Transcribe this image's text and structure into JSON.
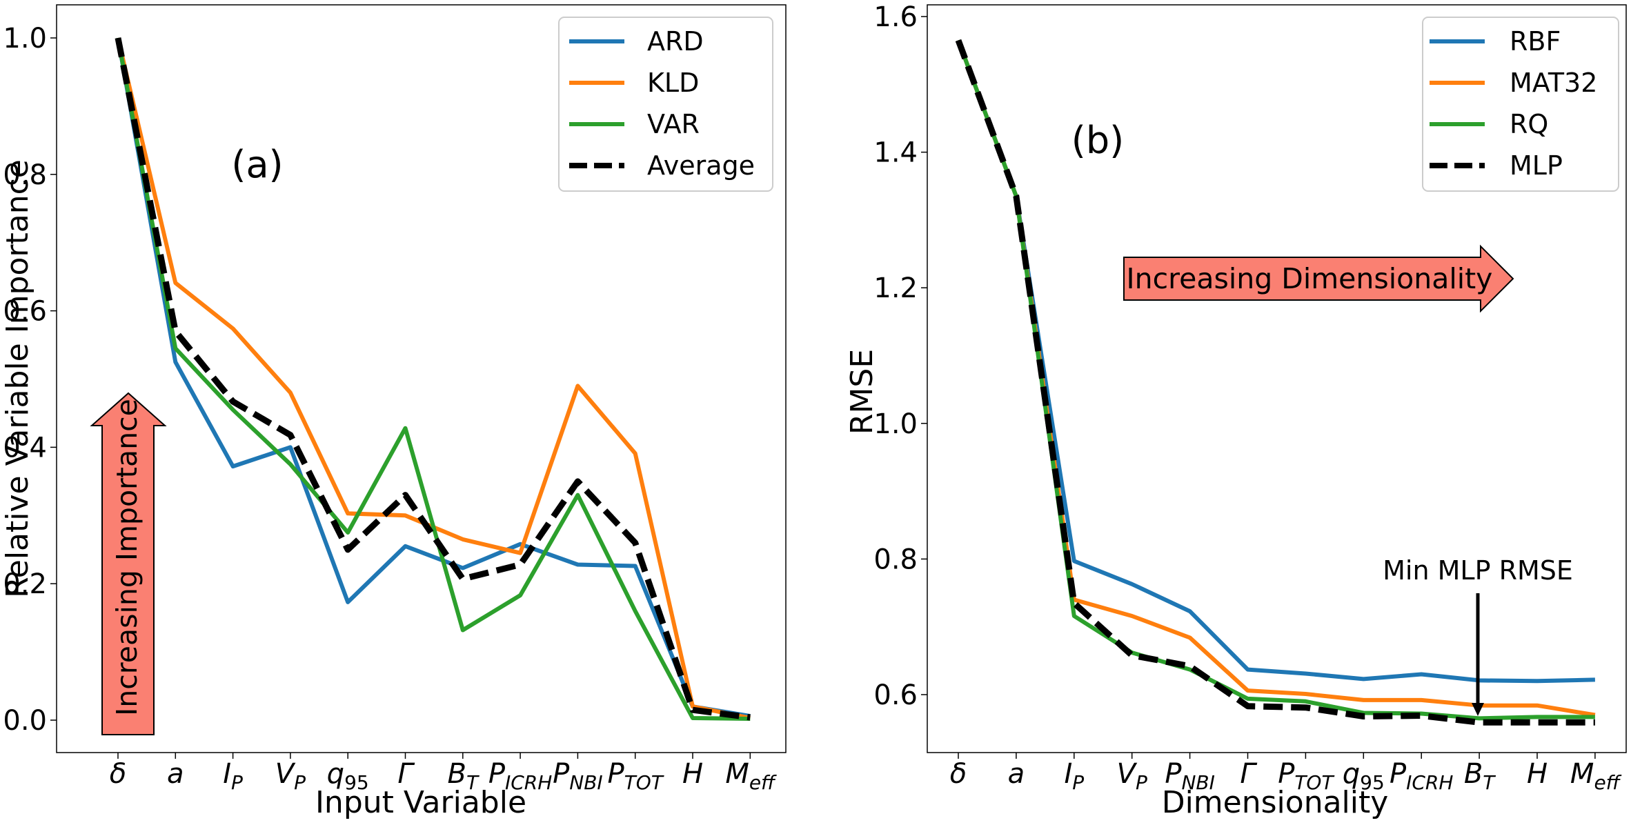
{
  "chart_data": [
    {
      "type": "line",
      "panel_label": "(a)",
      "xlabel": "Input Variable",
      "ylabel": "Relative Variable Importance",
      "ylim": [
        -0.05,
        1.05
      ],
      "yticks": [
        "0.0",
        "0.2",
        "0.4",
        "0.6",
        "0.8",
        "1.0"
      ],
      "yticks_values": [
        0.0,
        0.2,
        0.4,
        0.6,
        0.8,
        1.0
      ],
      "categories": [
        {
          "base": "δ",
          "sub": ""
        },
        {
          "base": "a",
          "sub": ""
        },
        {
          "base": "I",
          "sub": "P"
        },
        {
          "base": "V",
          "sub": "P"
        },
        {
          "base": "q",
          "sub": "95"
        },
        {
          "base": "Γ",
          "sub": ""
        },
        {
          "base": "B",
          "sub": "T"
        },
        {
          "base": "P",
          "sub": "ICRH"
        },
        {
          "base": "P",
          "sub": "NBI"
        },
        {
          "base": "P",
          "sub": "TOT"
        },
        {
          "base": "H",
          "sub": ""
        },
        {
          "base": "M",
          "sub": "eff"
        }
      ],
      "series": [
        {
          "name": "ARD",
          "color": "#1f77b4",
          "dashed": false,
          "values": [
            1.0,
            0.525,
            0.372,
            0.4,
            0.173,
            0.255,
            0.223,
            0.258,
            0.228,
            0.226,
            0.02,
            0.006
          ]
        },
        {
          "name": "KLD",
          "color": "#ff7f0e",
          "dashed": false,
          "values": [
            1.0,
            0.641,
            0.574,
            0.48,
            0.303,
            0.3,
            0.265,
            0.245,
            0.49,
            0.391,
            0.02,
            0.003
          ]
        },
        {
          "name": "VAR",
          "color": "#2ca02c",
          "dashed": false,
          "values": [
            1.0,
            0.545,
            0.455,
            0.375,
            0.275,
            0.428,
            0.132,
            0.183,
            0.33,
            0.16,
            0.003,
            0.002
          ]
        },
        {
          "name": "Average",
          "color": "#000000",
          "dashed": true,
          "values": [
            1.0,
            0.57,
            0.467,
            0.418,
            0.25,
            0.33,
            0.207,
            0.228,
            0.35,
            0.26,
            0.015,
            0.004
          ]
        }
      ],
      "legend": "top-right",
      "arrow_label": "Increasing Importance",
      "arrow_color": "#fa8072"
    },
    {
      "type": "line",
      "panel_label": "(b)",
      "xlabel": "Dimensionality",
      "ylabel": "RMSE",
      "ylim": [
        0.51,
        1.615
      ],
      "yticks": [
        "0.6",
        "0.8",
        "1.0",
        "1.2",
        "1.4",
        "1.6"
      ],
      "yticks_values": [
        0.6,
        0.8,
        1.0,
        1.2,
        1.4,
        1.6
      ],
      "categories": [
        {
          "base": "δ",
          "sub": ""
        },
        {
          "base": "a",
          "sub": ""
        },
        {
          "base": "I",
          "sub": "P"
        },
        {
          "base": "V",
          "sub": "P"
        },
        {
          "base": "P",
          "sub": "NBI"
        },
        {
          "base": "Γ",
          "sub": ""
        },
        {
          "base": "P",
          "sub": "TOT"
        },
        {
          "base": "q",
          "sub": "95"
        },
        {
          "base": "P",
          "sub": "ICRH"
        },
        {
          "base": "B",
          "sub": "T"
        },
        {
          "base": "H",
          "sub": ""
        },
        {
          "base": "M",
          "sub": "eff"
        }
      ],
      "series": [
        {
          "name": "RBF",
          "color": "#1f77b4",
          "dashed": false,
          "values": [
            1.565,
            1.335,
            0.797,
            0.763,
            0.723,
            0.637,
            0.631,
            0.623,
            0.63,
            0.621,
            0.62,
            0.622
          ]
        },
        {
          "name": "MAT32",
          "color": "#ff7f0e",
          "dashed": false,
          "values": [
            1.565,
            1.335,
            0.74,
            0.716,
            0.684,
            0.606,
            0.601,
            0.592,
            0.592,
            0.584,
            0.584,
            0.57
          ]
        },
        {
          "name": "RQ",
          "color": "#2ca02c",
          "dashed": false,
          "values": [
            1.565,
            1.335,
            0.716,
            0.662,
            0.637,
            0.594,
            0.59,
            0.573,
            0.572,
            0.565,
            0.567,
            0.567
          ]
        },
        {
          "name": "MLP",
          "color": "#000000",
          "dashed": true,
          "values": [
            1.565,
            1.335,
            0.735,
            0.658,
            0.642,
            0.583,
            0.581,
            0.568,
            0.569,
            0.559,
            0.559,
            0.559
          ]
        }
      ],
      "legend": "top-right",
      "arrow_label": "Increasing Dimensionality",
      "arrow_color": "#fa8072",
      "annotation": {
        "text": "Min MLP RMSE",
        "category_index": 9,
        "y": 0.558
      }
    }
  ]
}
